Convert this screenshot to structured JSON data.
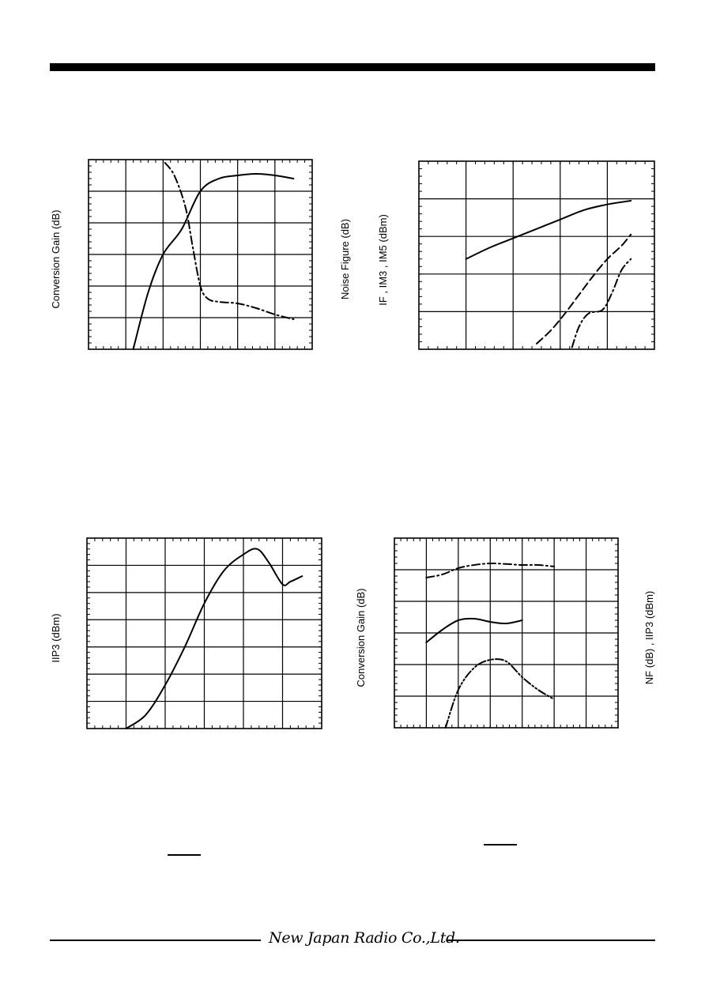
{
  "footer": {
    "company": "New Japan Radio Co.,Ltd."
  },
  "chart_data": [
    {
      "type": "line",
      "ylabel": "Conversion Gain (dB)",
      "ylabel_right": "Noise Figure (dB)",
      "grid": true,
      "xlim": [
        0,
        6
      ],
      "ylim": [
        0,
        6
      ],
      "series": [
        {
          "style": "solid",
          "x": [
            1.2,
            1.6,
            2.0,
            2.5,
            3.0,
            3.5,
            4.0,
            4.5,
            5.0,
            5.5
          ],
          "y": [
            0.0,
            1.8,
            3.0,
            3.8,
            5.0,
            5.4,
            5.5,
            5.55,
            5.5,
            5.4
          ]
        },
        {
          "style": "dash-dot",
          "x": [
            2.05,
            2.3,
            2.6,
            2.8,
            3.0,
            3.2,
            3.5,
            4.0,
            4.5,
            5.0,
            5.5
          ],
          "y": [
            5.9,
            5.5,
            4.5,
            3.2,
            2.0,
            1.6,
            1.5,
            1.45,
            1.3,
            1.1,
            0.95
          ]
        }
      ]
    },
    {
      "type": "line",
      "ylabel": "IF , IM3 , IM5 (dBm)",
      "grid": true,
      "xlim": [
        0,
        5
      ],
      "ylim": [
        0,
        5
      ],
      "series": [
        {
          "style": "solid",
          "x": [
            1.0,
            1.5,
            2.0,
            2.5,
            3.0,
            3.5,
            4.0,
            4.5
          ],
          "y": [
            2.4,
            2.7,
            2.95,
            3.2,
            3.45,
            3.7,
            3.85,
            3.95
          ]
        },
        {
          "style": "dash",
          "x": [
            2.5,
            2.8,
            3.1,
            3.4,
            3.7,
            4.0,
            4.3,
            4.5
          ],
          "y": [
            0.15,
            0.5,
            0.95,
            1.45,
            1.95,
            2.4,
            2.75,
            3.05
          ]
        },
        {
          "style": "dash-dot",
          "x": [
            3.25,
            3.4,
            3.6,
            3.9,
            4.1,
            4.3,
            4.5
          ],
          "y": [
            0.05,
            0.6,
            0.95,
            1.05,
            1.5,
            2.1,
            2.4
          ]
        }
      ]
    },
    {
      "type": "line",
      "ylabel": "IIP3 (dBm)",
      "grid": true,
      "xlim": [
        0,
        6
      ],
      "ylim": [
        0,
        7
      ],
      "series": [
        {
          "style": "solid",
          "x": [
            1.0,
            1.5,
            2.0,
            2.5,
            3.0,
            3.5,
            4.0,
            4.35,
            4.65,
            5.0,
            5.2,
            5.5
          ],
          "y": [
            0.0,
            0.5,
            1.6,
            3.0,
            4.6,
            5.8,
            6.4,
            6.6,
            6.1,
            5.3,
            5.4,
            5.6
          ]
        }
      ]
    },
    {
      "type": "line",
      "ylabel": "Conversion Gain (dB)",
      "ylabel_right": "NF (dB) , IIP3 (dBm)",
      "grid": true,
      "xlim": [
        0,
        7
      ],
      "ylim": [
        0,
        6
      ],
      "series": [
        {
          "style": "dash-dot",
          "x": [
            1.0,
            1.5,
            2.0,
            2.5,
            3.0,
            3.5,
            4.0,
            4.5,
            5.0
          ],
          "y": [
            4.75,
            4.85,
            5.05,
            5.15,
            5.2,
            5.18,
            5.15,
            5.15,
            5.1
          ]
        },
        {
          "style": "solid",
          "x": [
            1.0,
            1.5,
            2.0,
            2.5,
            3.0,
            3.5,
            4.0
          ],
          "y": [
            2.7,
            3.1,
            3.4,
            3.45,
            3.35,
            3.3,
            3.4
          ]
        },
        {
          "style": "dash-dot-dot",
          "x": [
            1.6,
            2.0,
            2.5,
            3.0,
            3.5,
            4.0,
            4.5,
            5.0
          ],
          "y": [
            0.0,
            1.2,
            1.9,
            2.15,
            2.1,
            1.6,
            1.2,
            0.9
          ]
        }
      ]
    }
  ]
}
